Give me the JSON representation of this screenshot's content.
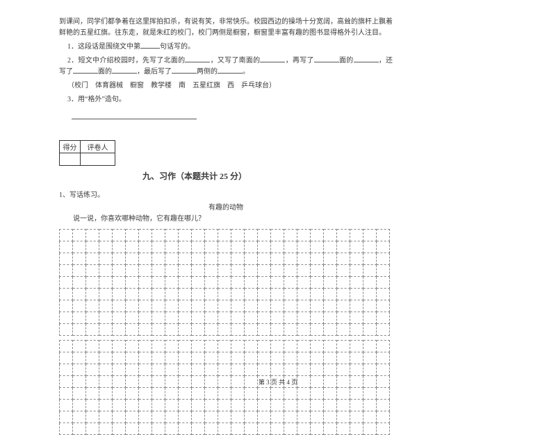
{
  "reading": {
    "p1": "到课间，同学们都争着在这里挥拍扣杀，有说有笑，非常快乐。校园西边的操场十分宽阔，高耸的旗杆上飘着鲜艳的五星红旗。往东走，就是朱红的校门，校门两侧是橱窗，橱窗里丰富有趣的图书显得格外引人注目。",
    "q1_a": "1．这段话是围绕文中第",
    "q1_b": "句话写的。",
    "q2_a": "2．短文中介绍校园时，先写了北面的",
    "q2_b": "，又写了南面的",
    "q2_c": "，再写了",
    "q2_d": "面的",
    "q2_e": "，还写了",
    "q2_f": "面的",
    "q2_g": "，最后写了",
    "q2_h": "两侧的",
    "q2_i": "。",
    "bank": "（校门　体育器械　橱窗　教学楼　南　五星红旗　西　乒乓球台）",
    "q3": "3．用“格外”造句。"
  },
  "score": {
    "l1": "得分",
    "l2": "评卷人"
  },
  "section": {
    "title": "九、习作（本题共计 25 分）"
  },
  "writing": {
    "q": "1、写话练习。",
    "title": "有趣的动物",
    "prompt": "说一说，你喜欢哪种动物，它有趣在哪儿？"
  },
  "grid": {
    "cols": 25,
    "rows1": 9,
    "rows2": 8
  },
  "footer": "第 3 页 共 4 页"
}
